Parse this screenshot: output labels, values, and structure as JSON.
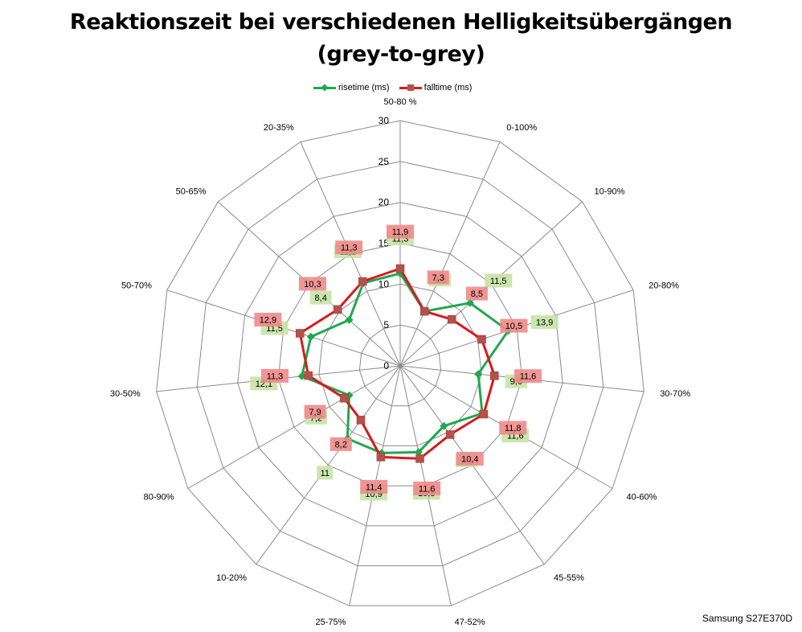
{
  "chart_data": {
    "type": "radar",
    "title": "Reaktionszeit bei verschiedenen Helligkeitsübergängen",
    "subtitle": "(grey-to-grey)",
    "categories": [
      "50-80 %",
      "0-100%",
      "10-90%",
      "20-80%",
      "30-70%",
      "40-60%",
      "45-55%",
      "47-52%",
      "25-75%",
      "10-20%",
      "80-90%",
      "30-50%",
      "50-70%",
      "50-65%",
      "20-35%"
    ],
    "axis_ticks": [
      "0",
      "5",
      "10",
      "15",
      "20",
      "25",
      "30"
    ],
    "rlim": [
      0,
      30
    ],
    "grid": true,
    "legend_position": "top",
    "series": [
      {
        "name": "risetime (ms)",
        "color": "#1fa84f",
        "label_bg": "#c6e3a6",
        "marker": "diamond",
        "values": [
          11.3,
          7.3,
          11.5,
          13.9,
          9.6,
          11.6,
          9.1,
          10.8,
          10.9,
          11.0,
          7.2,
          12.1,
          11.5,
          8.4,
          11.1
        ],
        "labels": [
          "11,3",
          "7,3",
          "11,5",
          "13,9",
          "9,6",
          "11,6",
          "9,1",
          "10,8",
          "10,9",
          "11",
          "7,2",
          "12,1",
          "11,5",
          "8,4",
          "11,1"
        ]
      },
      {
        "name": "falltime (ms)",
        "color": "#d9191c",
        "label_bg": "#f08a8a",
        "marker": "square",
        "values": [
          11.9,
          7.3,
          8.5,
          10.5,
          11.6,
          11.8,
          10.4,
          11.6,
          11.4,
          8.2,
          7.9,
          11.3,
          12.9,
          10.3,
          11.3
        ],
        "labels": [
          "11,9",
          "7,3",
          "8,5",
          "10,5",
          "11,6",
          "11,8",
          "10,4",
          "11,6",
          "11,4",
          "8,2",
          "7,9",
          "11,3",
          "12,9",
          "10,3",
          "11,3"
        ]
      }
    ]
  },
  "footer_note": "Samsung S27E370D"
}
